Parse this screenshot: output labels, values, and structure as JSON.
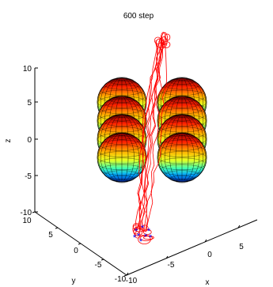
{
  "chart_data": {
    "type": "3d-plot",
    "title": "600 step",
    "xlabel": "x",
    "ylabel": "y",
    "zlabel": "z",
    "xlim": [
      -10,
      10
    ],
    "ylim": [
      -10,
      10
    ],
    "zlim": [
      -10,
      10
    ],
    "x_ticks": [
      "-10",
      "-5",
      "0",
      "5"
    ],
    "y_ticks": [
      "10",
      "5",
      "0",
      "-5",
      "-10"
    ],
    "z_ticks": [
      "10",
      "5",
      "0",
      "-5",
      "-10"
    ],
    "trajectory_color": "#ff0000",
    "marker_color": "#0000ff",
    "sphere_colormap": "jet",
    "spheres": [
      {
        "z": 5
      },
      {
        "z": 2.5
      },
      {
        "z": 0
      },
      {
        "z": -2.5
      },
      {
        "z": 5
      },
      {
        "z": 2.5
      },
      {
        "z": 0
      },
      {
        "z": -2.5
      }
    ]
  }
}
